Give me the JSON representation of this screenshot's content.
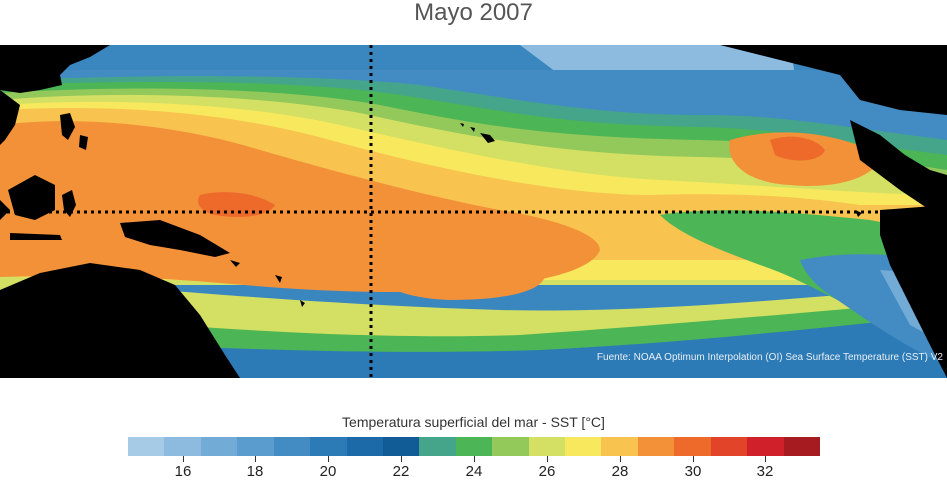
{
  "title": "Mayo 2007",
  "source_note": "Fuente: NOAA Optimum Interpolation (OI) Sea Surface Temperature (SST) V2",
  "legend": {
    "title": "Temperatura superficial del mar - SST  [°C]",
    "min": 15,
    "max": 33,
    "step": 1,
    "colors": [
      "#a6cbe6",
      "#8dbbe0",
      "#72abd6",
      "#5a9ccd",
      "#428cc3",
      "#2c7bb6",
      "#1d6aa8",
      "#115c97",
      "#45a58a",
      "#4cb555",
      "#93c85b",
      "#d4e063",
      "#f7e85e",
      "#f8c34f",
      "#f39139",
      "#ed6a2b",
      "#e2442a",
      "#d0202a",
      "#a51b1f"
    ],
    "tick_values": [
      "16",
      "18",
      "20",
      "22",
      "24",
      "26",
      "28",
      "30",
      "32"
    ]
  },
  "map": {
    "dotted_lines": [
      "equator",
      "meridian"
    ],
    "land_color": "#000000",
    "region": "tropical Pacific Ocean"
  }
}
